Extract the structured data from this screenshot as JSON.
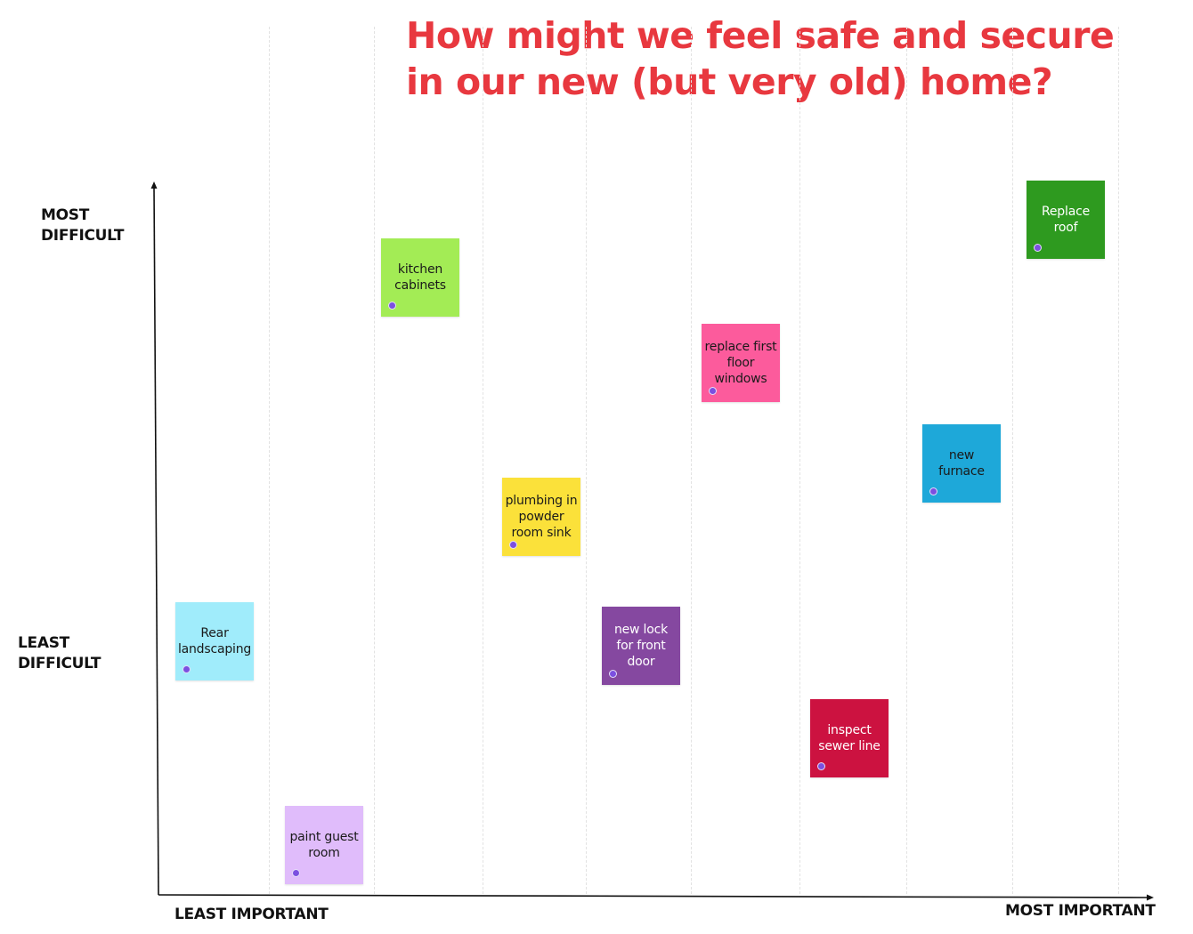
{
  "title": "How might we feel safe and secure in our new (but very old) home?",
  "axes": {
    "y_top_label": "MOST DIFFICULT",
    "y_bottom_label": "LEAST DIFFICULT",
    "x_left_label": "LEAST IMPORTANT",
    "x_right_label": "MOST IMPORTANT"
  },
  "notes": [
    {
      "text": "kitchen cabinets",
      "color": "#a3ec55",
      "text_color": "#1a1a1a"
    },
    {
      "text": "Replace roof",
      "color": "#2e9a1f",
      "text_color": "#ffffff"
    },
    {
      "text": "replace first floor windows",
      "color": "#fc5b9c",
      "text_color": "#1a1a1a"
    },
    {
      "text": "new furnace",
      "color": "#1ea8d9",
      "text_color": "#1a1a1a"
    },
    {
      "text": "plumbing in powder room sink",
      "color": "#fbe13a",
      "text_color": "#1a1a1a"
    },
    {
      "text": "Rear landscaping",
      "color": "#a0ecfb",
      "text_color": "#1a1a1a"
    },
    {
      "text": "new lock for front door",
      "color": "#8548a0",
      "text_color": "#ffffff"
    },
    {
      "text": "inspect sewer line",
      "color": "#cc1240",
      "text_color": "#ffffff"
    },
    {
      "text": "paint guest room",
      "color": "#e0bcfb",
      "text_color": "#1a1a1a"
    }
  ],
  "colors": {
    "title": "#e8383f",
    "axis": "#111111",
    "marker_dot": "#7b4fe0"
  }
}
